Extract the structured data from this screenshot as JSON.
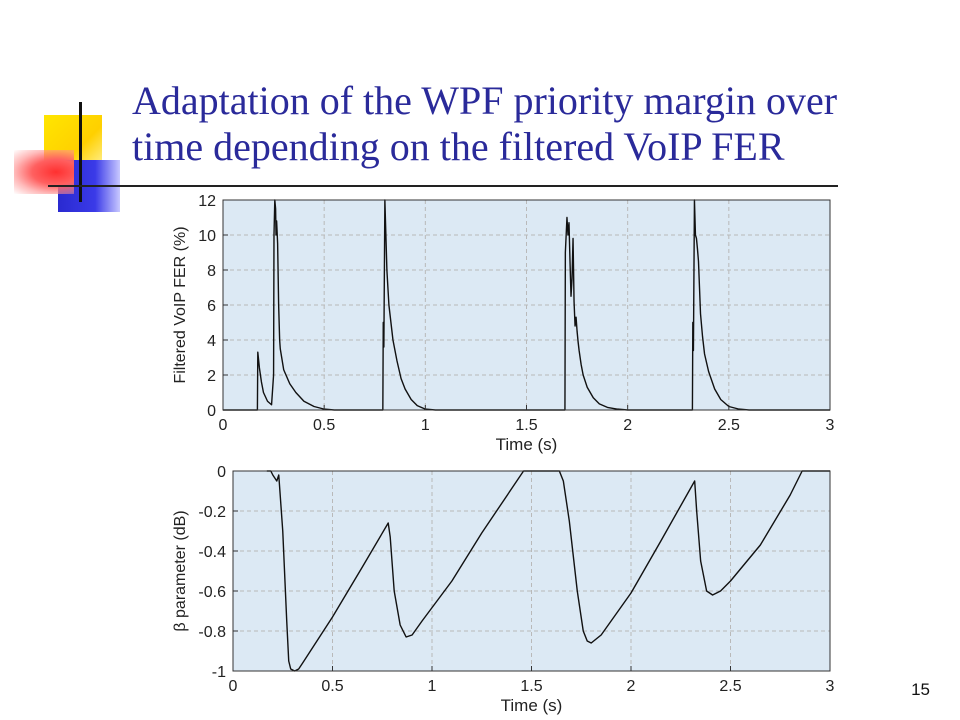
{
  "slide": {
    "title_lines": [
      "Adaptation of the WPF priority margin over",
      "time depending on the filtered VoIP FER"
    ],
    "page_number": "15"
  },
  "colors": {
    "title": "#2a2a9a",
    "plot_bg": "#dce9f4",
    "grid": "#b9b9b9",
    "line": "#111111"
  },
  "chart_data": [
    {
      "type": "line",
      "xlabel": "Time (s)",
      "ylabel": "Filtered VoIP FER (%)",
      "xlim": [
        0,
        3
      ],
      "ylim": [
        0,
        12
      ],
      "xticks": [
        0,
        0.5,
        1,
        1.5,
        2,
        2.5,
        3
      ],
      "xtick_labels": [
        "0",
        "0.5",
        "1",
        "1.5",
        "2",
        "2.5",
        "3"
      ],
      "yticks": [
        0,
        2,
        4,
        6,
        8,
        10,
        12
      ],
      "ytick_labels": [
        "0",
        "2",
        "4",
        "6",
        "8",
        "10",
        "12"
      ],
      "grid": true,
      "series": [
        {
          "x": [
            0,
            0.17,
            0.172,
            0.18,
            0.19,
            0.2,
            0.22,
            0.24,
            0.25,
            0.252,
            0.256,
            0.26,
            0.262,
            0.265,
            0.27,
            0.275,
            0.28,
            0.283,
            0.3,
            0.33,
            0.36,
            0.4,
            0.45,
            0.5,
            0.55,
            0.79,
            0.792,
            0.795,
            0.8,
            0.805,
            0.81,
            0.82,
            0.84,
            0.86,
            0.88,
            0.9,
            0.93,
            0.96,
            1.0,
            1.05,
            1.1,
            1.69,
            1.692,
            1.7,
            1.705,
            1.71,
            1.715,
            1.72,
            1.725,
            1.73,
            1.735,
            1.74,
            1.745,
            1.75,
            1.755,
            1.76,
            1.77,
            1.78,
            1.8,
            1.83,
            1.86,
            1.9,
            1.95,
            2.0,
            2.05,
            2.32,
            2.322,
            2.325,
            2.33,
            2.335,
            2.34,
            2.345,
            2.35,
            2.355,
            2.36,
            2.37,
            2.38,
            2.4,
            2.43,
            2.46,
            2.5,
            2.55,
            2.6,
            3.0
          ],
          "y": [
            0,
            0,
            3.3,
            2.4,
            1.6,
            1.0,
            0.5,
            0.3,
            2.0,
            10.0,
            12.0,
            11.5,
            10.0,
            10.8,
            9.5,
            6.0,
            4.0,
            3.5,
            2.3,
            1.5,
            1.0,
            0.5,
            0.2,
            0.05,
            0,
            0,
            5.0,
            3.6,
            12.0,
            10.0,
            8.0,
            6.0,
            4.0,
            2.8,
            1.8,
            1.2,
            0.6,
            0.25,
            0.05,
            0,
            0,
            0,
            9.0,
            11.0,
            10.0,
            10.7,
            8.5,
            6.5,
            7.5,
            9.8,
            6.2,
            4.8,
            5.3,
            4.5,
            3.9,
            3.4,
            2.6,
            2.0,
            1.3,
            0.7,
            0.35,
            0.15,
            0.05,
            0,
            0,
            0,
            5.0,
            3.4,
            12.0,
            10.0,
            9.8,
            9.2,
            8.5,
            7.0,
            5.5,
            4.2,
            3.2,
            2.2,
            1.2,
            0.6,
            0.2,
            0.05,
            0,
            0
          ]
        }
      ]
    },
    {
      "type": "line",
      "xlabel": "Time (s)",
      "ylabel": "β parameter (dB)",
      "xlim": [
        0,
        3
      ],
      "ylim": [
        -1,
        0
      ],
      "xticks": [
        0,
        0.5,
        1,
        1.5,
        2,
        2.5,
        3
      ],
      "xtick_labels": [
        "0",
        "0.5",
        "1",
        "1.5",
        "2",
        "2.5",
        "3"
      ],
      "yticks": [
        -1,
        -0.8,
        -0.6,
        -0.4,
        -0.2,
        0
      ],
      "ytick_labels": [
        "-1",
        "-0.8",
        "-0.6",
        "-0.4",
        "-0.2",
        "0"
      ],
      "grid": true,
      "series": [
        {
          "x": [
            0.17,
            0.19,
            0.2,
            0.22,
            0.23,
            0.25,
            0.27,
            0.28,
            0.29,
            0.31,
            0.33,
            0.35,
            0.5,
            0.65,
            0.78,
            0.79,
            0.81,
            0.84,
            0.87,
            0.9,
            0.95,
            1.1,
            1.25,
            1.46,
            1.5,
            1.64,
            1.66,
            1.69,
            1.73,
            1.76,
            1.78,
            1.8,
            1.85,
            2.0,
            2.15,
            2.32,
            2.33,
            2.35,
            2.38,
            2.41,
            2.45,
            2.5,
            2.65,
            2.8,
            2.86,
            3.0
          ],
          "y": [
            0,
            0,
            -0.02,
            -0.05,
            -0.02,
            -0.3,
            -0.75,
            -0.95,
            -0.99,
            -1.0,
            -0.99,
            -0.96,
            -0.73,
            -0.48,
            -0.26,
            -0.33,
            -0.6,
            -0.77,
            -0.83,
            -0.82,
            -0.75,
            -0.55,
            -0.31,
            0,
            0,
            0,
            -0.05,
            -0.25,
            -0.6,
            -0.8,
            -0.85,
            -0.86,
            -0.82,
            -0.61,
            -0.35,
            -0.05,
            -0.2,
            -0.45,
            -0.6,
            -0.62,
            -0.6,
            -0.55,
            -0.37,
            -0.12,
            0,
            0
          ]
        }
      ]
    }
  ]
}
